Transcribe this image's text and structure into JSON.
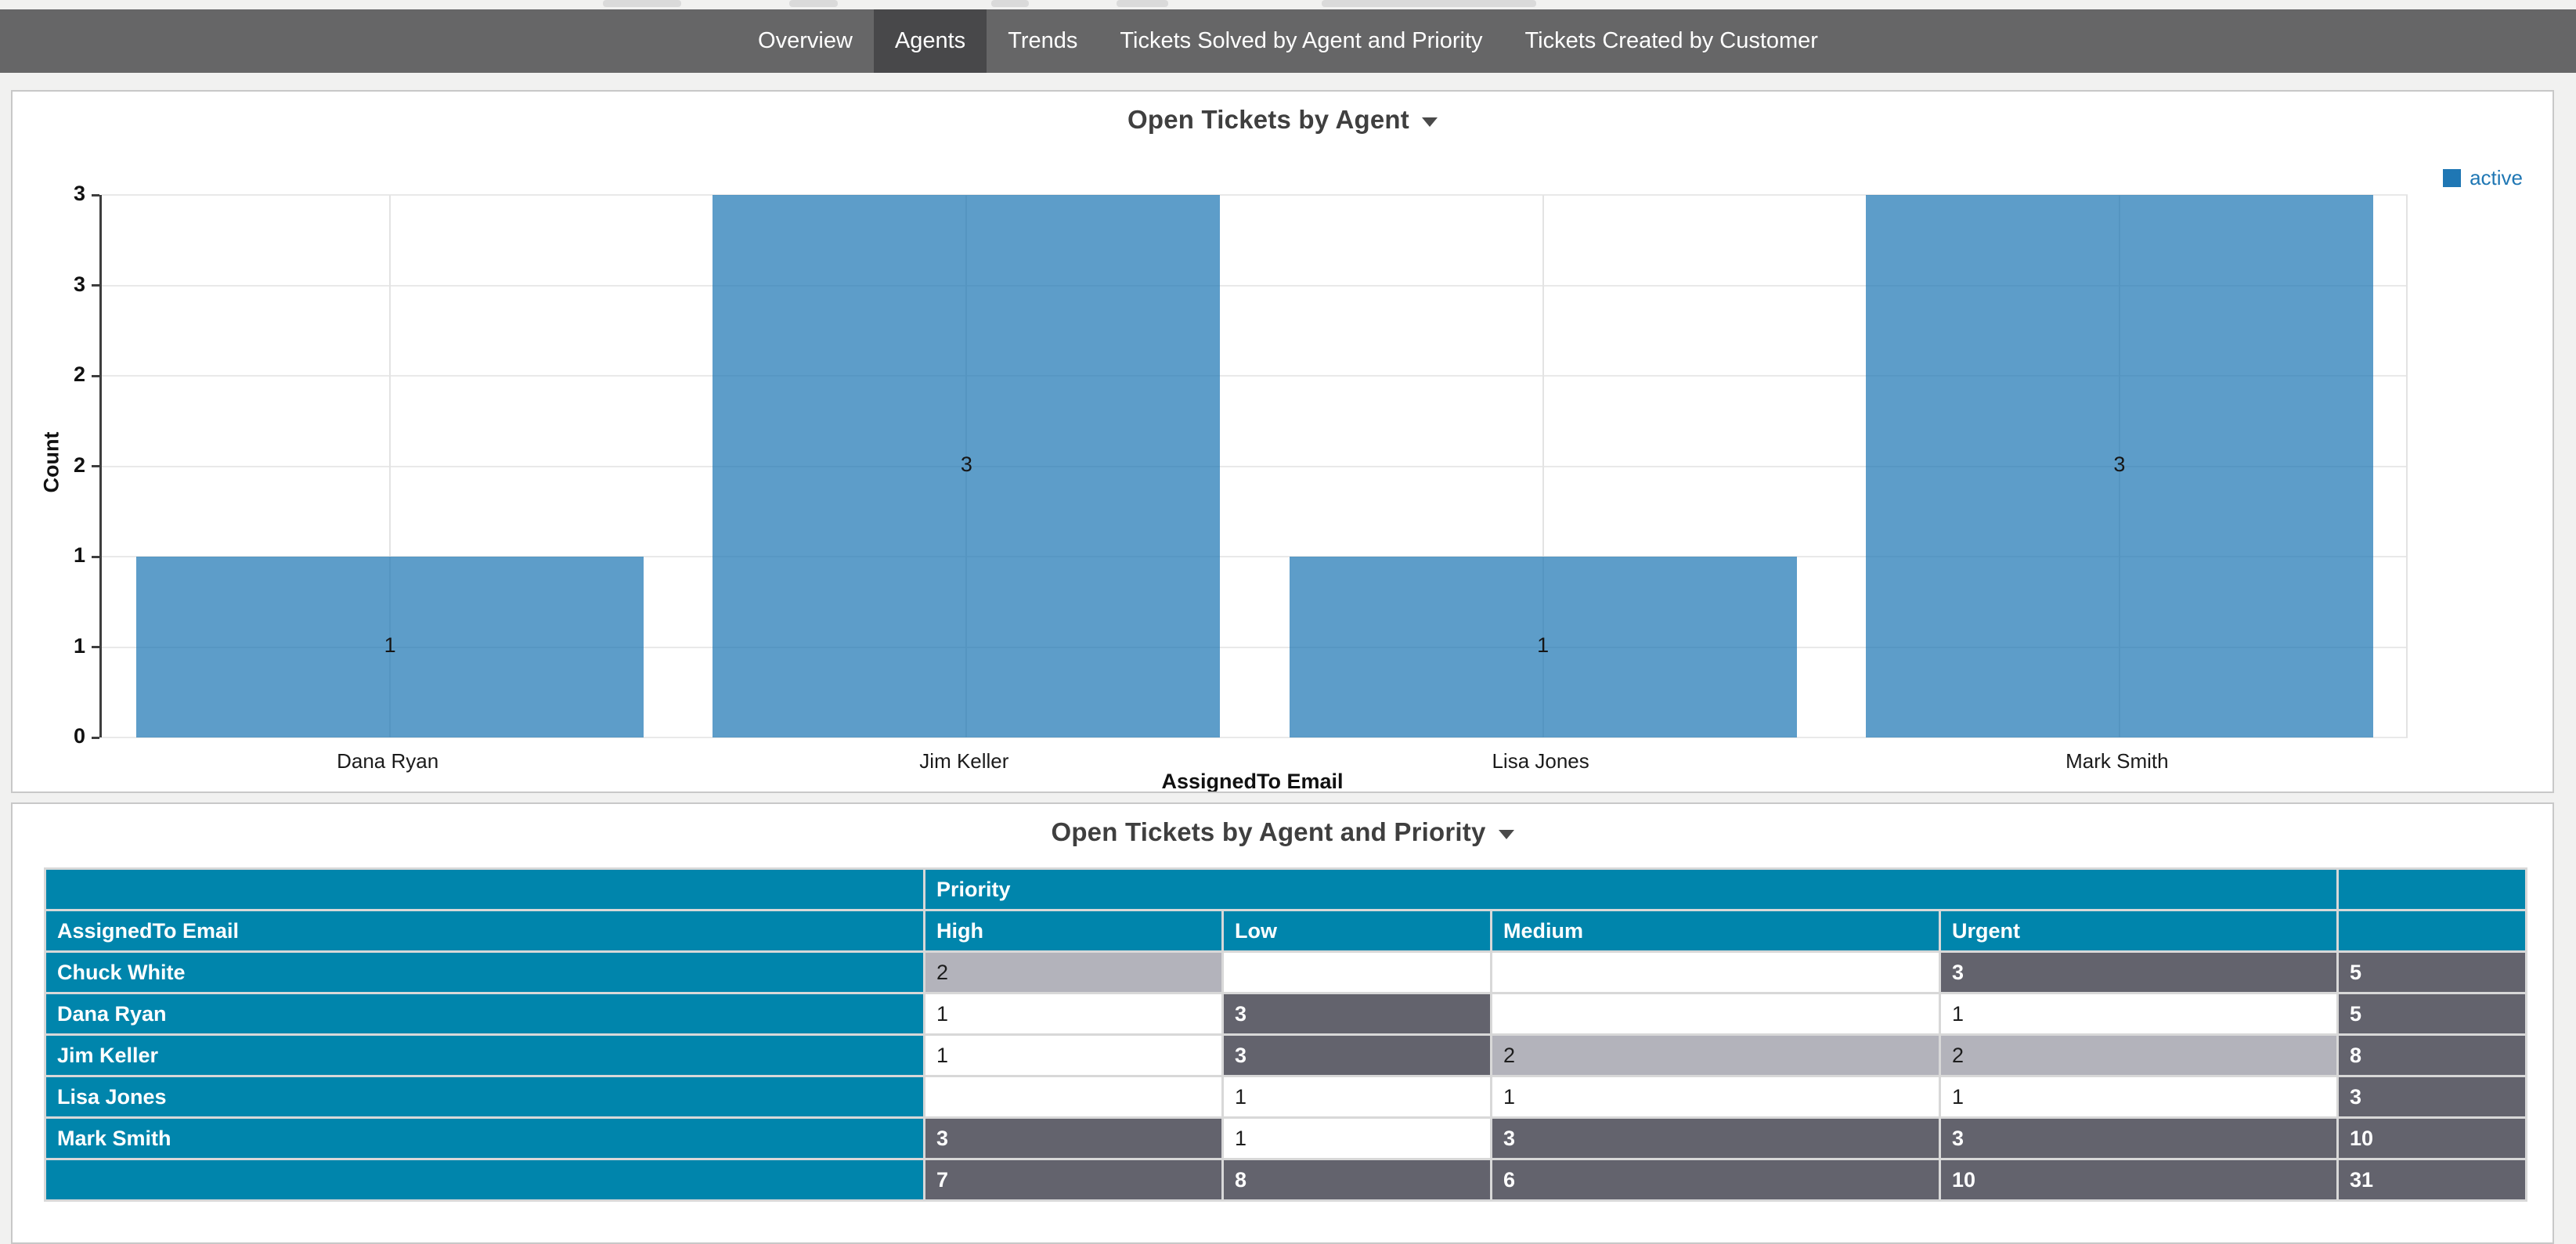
{
  "nav": {
    "tabs": [
      {
        "label": "Overview",
        "active": false
      },
      {
        "label": "Agents",
        "active": true
      },
      {
        "label": "Trends",
        "active": false
      },
      {
        "label": "Tickets Solved by Agent and Priority",
        "active": false
      },
      {
        "label": "Tickets Created by Customer",
        "active": false
      }
    ]
  },
  "colors": {
    "nav_bg": "#666667",
    "nav_active_bg": "#48484a",
    "teal_header": "#0085ac",
    "bar_blue": "#5b99c9",
    "legend_blue": "#1f77b4",
    "heat_high": "#63636d",
    "heat_mid": "#b3b3bb",
    "heat_low": "#ffffff",
    "page_bg": "#f1f1f0"
  },
  "chart_data": [
    {
      "type": "bar",
      "title": "Open Tickets by Agent",
      "legend": {
        "label": "active",
        "position": "top-right",
        "color": "#1f77b4"
      },
      "categories": [
        "Dana Ryan",
        "Jim Keller",
        "Lisa Jones",
        "Mark Smith"
      ],
      "values": [
        1,
        3,
        1,
        3
      ],
      "data_labels": [
        "1",
        "3",
        "1",
        "3"
      ],
      "xlabel": "AssignedTo Email",
      "ylabel": "Count",
      "ylim": [
        0,
        3
      ],
      "yticks": [
        0,
        0.5,
        1,
        1.5,
        2,
        2.5,
        3
      ],
      "ytick_labels": [
        "0",
        "1",
        "1",
        "2",
        "2",
        "3",
        "3"
      ],
      "grid": true,
      "bar_color": "#5b99c9"
    },
    {
      "type": "table",
      "title": "Open Tickets by Agent and Priority",
      "column_group_label": "Priority",
      "row_header_label": "AssignedTo Email",
      "columns": [
        "High",
        "Low",
        "Medium",
        "Urgent"
      ],
      "rows": [
        {
          "label": "Chuck White",
          "values": [
            2,
            null,
            null,
            3
          ],
          "total": 5
        },
        {
          "label": "Dana Ryan",
          "values": [
            1,
            3,
            null,
            1
          ],
          "total": 5
        },
        {
          "label": "Jim Keller",
          "values": [
            1,
            3,
            2,
            2
          ],
          "total": 8
        },
        {
          "label": "Lisa Jones",
          "values": [
            null,
            1,
            1,
            1
          ],
          "total": 3
        },
        {
          "label": "Mark Smith",
          "values": [
            3,
            1,
            3,
            3
          ],
          "total": 10
        }
      ],
      "totals_row": {
        "values": [
          7,
          8,
          6,
          10
        ],
        "grand_total": 31
      },
      "heatmap_legend": {
        "value_1": "#ffffff",
        "value_2": "#b3b3bb",
        "value_3_plus": "#63636d"
      }
    }
  ]
}
